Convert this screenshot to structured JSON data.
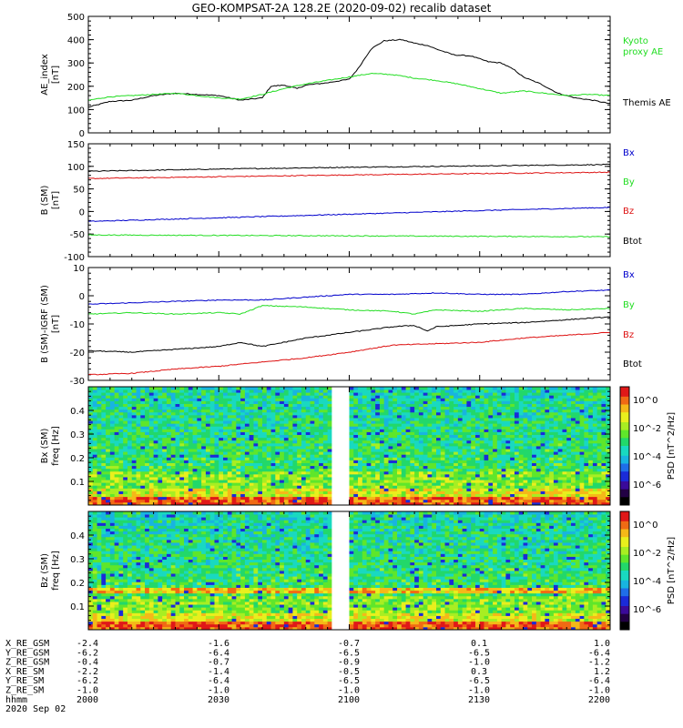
{
  "title": "GEO-KOMPSAT-2A 128.2E (2020-09-02) recalib dataset",
  "colors": {
    "black": "#000000",
    "blue": "#0000cc",
    "green": "#22dd22",
    "red": "#dd1111",
    "kyoto": "#22dd22",
    "gap": "#ffffff"
  },
  "chart_data": [
    {
      "type": "line",
      "panel": "ae",
      "ylabel": "AE_index",
      "yunit": "[nT]",
      "ylim": [
        0,
        500
      ],
      "yticks": [
        0,
        100,
        200,
        300,
        400,
        500
      ],
      "xlim": [
        0,
        120
      ],
      "series": [
        {
          "name": "Themis AE",
          "color": "#000000",
          "x": [
            0,
            5,
            10,
            15,
            20,
            25,
            30,
            35,
            40,
            42,
            45,
            48,
            50,
            55,
            60,
            62,
            65,
            68,
            72,
            75,
            78,
            80,
            84,
            88,
            92,
            95,
            98,
            100,
            104,
            108,
            112,
            116,
            120
          ],
          "values": [
            110,
            135,
            140,
            160,
            170,
            165,
            160,
            140,
            150,
            200,
            205,
            190,
            205,
            215,
            230,
            275,
            360,
            395,
            400,
            385,
            375,
            360,
            335,
            330,
            305,
            300,
            270,
            240,
            210,
            170,
            150,
            140,
            125
          ]
        },
        {
          "name": "Kyoto proxy AE",
          "color": "#22dd22",
          "x": [
            0,
            5,
            10,
            15,
            20,
            25,
            30,
            35,
            40,
            45,
            50,
            55,
            60,
            65,
            70,
            75,
            80,
            85,
            90,
            95,
            100,
            105,
            110,
            115,
            120
          ],
          "values": [
            140,
            155,
            160,
            165,
            170,
            160,
            150,
            145,
            165,
            190,
            210,
            225,
            240,
            255,
            250,
            235,
            225,
            210,
            190,
            170,
            180,
            170,
            160,
            165,
            160
          ]
        }
      ],
      "legend_right": [
        {
          "text": "Kyoto",
          "color": "#22dd22"
        },
        {
          "text": "proxy AE",
          "color": "#22dd22"
        },
        {
          "text": "Themis AE",
          "color": "#000000"
        }
      ]
    },
    {
      "type": "line",
      "panel": "bsm",
      "ylabel": "B (SM)",
      "yunit": "[nT]",
      "ylim": [
        -100,
        150
      ],
      "yticks": [
        -100,
        -50,
        0,
        50,
        100,
        150
      ],
      "xlim": [
        0,
        120
      ],
      "series": [
        {
          "name": "Btot",
          "color": "#000000",
          "x": [
            0,
            30,
            60,
            90,
            120
          ],
          "values": [
            89,
            94,
            98,
            101,
            104
          ]
        },
        {
          "name": "Bz",
          "color": "#dd1111",
          "x": [
            0,
            30,
            60,
            90,
            120
          ],
          "values": [
            73,
            77,
            81,
            84,
            87
          ]
        },
        {
          "name": "Bx",
          "color": "#0000cc",
          "x": [
            0,
            30,
            60,
            90,
            120
          ],
          "values": [
            -22,
            -14,
            -6,
            2,
            9
          ]
        },
        {
          "name": "By",
          "color": "#22dd22",
          "x": [
            0,
            30,
            60,
            90,
            120
          ],
          "values": [
            -52,
            -53,
            -54,
            -55,
            -56
          ]
        }
      ],
      "legend_right": [
        {
          "text": "Bx",
          "color": "#0000cc"
        },
        {
          "text": "By",
          "color": "#22dd22"
        },
        {
          "text": "Bz",
          "color": "#dd1111"
        },
        {
          "text": "Btot",
          "color": "#000000"
        }
      ]
    },
    {
      "type": "line",
      "panel": "bdiff",
      "ylabel": "B (SM)-IGRF (SM)",
      "yunit": "[nT]",
      "ylim": [
        -30,
        10
      ],
      "yticks": [
        -30,
        -20,
        -10,
        0,
        10
      ],
      "xlim": [
        0,
        120
      ],
      "series": [
        {
          "name": "Bx",
          "color": "#0000cc",
          "x": [
            0,
            10,
            20,
            30,
            40,
            50,
            60,
            70,
            80,
            90,
            100,
            110,
            120
          ],
          "values": [
            -3,
            -2.5,
            -2,
            -1.5,
            -1.5,
            -0.5,
            0.5,
            0.5,
            1,
            0.5,
            0.5,
            1.5,
            2
          ]
        },
        {
          "name": "By",
          "color": "#22dd22",
          "x": [
            0,
            10,
            20,
            30,
            35,
            40,
            50,
            60,
            70,
            75,
            80,
            90,
            100,
            110,
            120
          ],
          "values": [
            -6.5,
            -6,
            -6.5,
            -6,
            -6.5,
            -3.5,
            -4,
            -5,
            -5.5,
            -6.5,
            -5,
            -5.5,
            -4.5,
            -5,
            -4.5
          ]
        },
        {
          "name": "Btot",
          "color": "#000000",
          "x": [
            0,
            10,
            20,
            30,
            35,
            40,
            50,
            60,
            70,
            75,
            78,
            80,
            90,
            100,
            110,
            120
          ],
          "values": [
            -19.5,
            -20,
            -19,
            -18,
            -16.5,
            -18,
            -15,
            -13,
            -11,
            -10.5,
            -12.5,
            -11,
            -10,
            -9.5,
            -8.5,
            -7.5
          ]
        },
        {
          "name": "Bz",
          "color": "#dd1111",
          "x": [
            0,
            10,
            20,
            30,
            40,
            50,
            60,
            70,
            80,
            90,
            100,
            110,
            120
          ],
          "values": [
            -28,
            -27.5,
            -26,
            -25,
            -23.5,
            -22,
            -20,
            -17.5,
            -17,
            -16.5,
            -15,
            -14,
            -13
          ]
        }
      ],
      "legend_right": [
        {
          "text": "Bx",
          "color": "#0000cc"
        },
        {
          "text": "By",
          "color": "#22dd22"
        },
        {
          "text": "Bz",
          "color": "#dd1111"
        },
        {
          "text": "Btot",
          "color": "#000000"
        }
      ]
    },
    {
      "type": "heatmap",
      "panel": "bxspec",
      "ylabel": "Bx (SM)",
      "ylabel2": "freq [Hz]",
      "ylim": [
        0,
        0.5
      ],
      "yticks": [
        0.1,
        0.2,
        0.3,
        0.4
      ],
      "xlim": [
        0,
        120
      ],
      "gap": [
        56,
        60
      ],
      "colorbar": {
        "label": "PSD [nT^2/Hz]",
        "ticks": [
          "10^0",
          "10^-2",
          "10^-4",
          "10^-6"
        ]
      }
    },
    {
      "type": "heatmap",
      "panel": "bzspec",
      "ylabel": "Bz (SM)",
      "ylabel2": "freq [Hz]",
      "ylim": [
        0,
        0.5
      ],
      "yticks": [
        0.1,
        0.2,
        0.3,
        0.4
      ],
      "xlim": [
        0,
        120
      ],
      "gap": [
        56,
        60
      ],
      "colorbar": {
        "label": "PSD [nT^2/Hz]",
        "ticks": [
          "10^0",
          "10^-2",
          "10^-4",
          "10^-6"
        ]
      }
    }
  ],
  "ephemeris": {
    "rows": [
      {
        "label": "X_RE_GSM",
        "values": [
          "-2.4",
          "-1.6",
          "-0.7",
          "0.1",
          "1.0"
        ]
      },
      {
        "label": "Y_RE_GSM",
        "values": [
          "-6.2",
          "-6.4",
          "-6.5",
          "-6.5",
          "-6.4"
        ]
      },
      {
        "label": "Z_RE_GSM",
        "values": [
          "-0.4",
          "-0.7",
          "-0.9",
          "-1.0",
          "-1.2"
        ]
      },
      {
        "label": "X_RE_SM",
        "values": [
          "-2.2",
          "-1.4",
          "-0.5",
          "0.3",
          "1.2"
        ]
      },
      {
        "label": "Y_RE_SM",
        "values": [
          "-6.2",
          "-6.4",
          "-6.5",
          "-6.5",
          "-6.4"
        ]
      },
      {
        "label": "Z_RE_SM",
        "values": [
          "-1.0",
          "-1.0",
          "-1.0",
          "-1.0",
          "-1.0"
        ]
      },
      {
        "label": "hhmm",
        "values": [
          "2000",
          "2030",
          "2100",
          "2130",
          "2200"
        ]
      }
    ],
    "date": "2020 Sep 02"
  }
}
